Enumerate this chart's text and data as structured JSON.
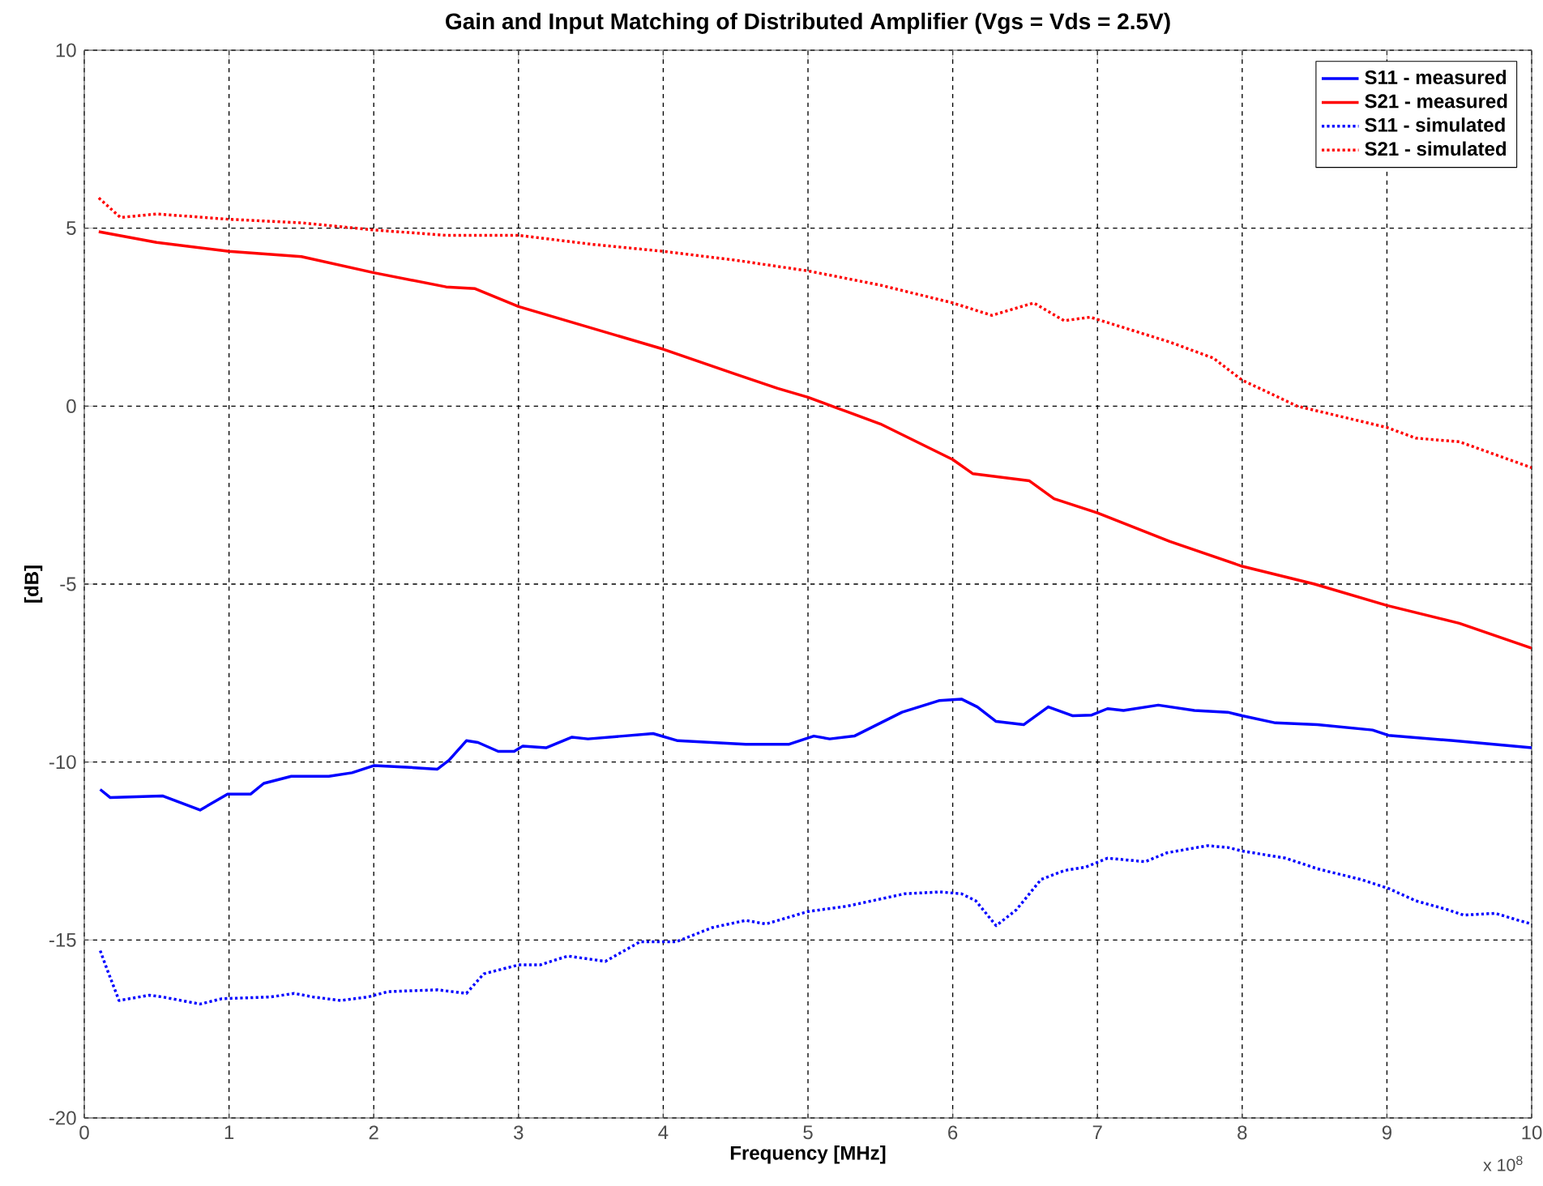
{
  "chart_data": {
    "type": "line",
    "title": "Gain and Input Matching of Distributed Amplifier (Vgs = Vds = 2.5V)",
    "xlabel": "Frequency [MHz]",
    "ylabel": "[dB]",
    "annotations": [
      "x 10$^{8}$"
    ],
    "xlim": [
      0,
      10
    ],
    "ylim": [
      -20,
      10
    ],
    "xticks": [
      0,
      1,
      2,
      3,
      4,
      5,
      6,
      7,
      8,
      9,
      10
    ],
    "yticks": [
      -20,
      -15,
      -10,
      -5,
      0,
      5,
      10
    ],
    "grid": true,
    "legend": "top right",
    "series": [
      {
        "name": "S11 - measured",
        "color": "#0000ff",
        "line_style": "solid",
        "x": [
          0.11,
          0.18,
          0.54,
          0.8,
          0.99,
          1.15,
          1.24,
          1.43,
          1.69,
          1.85,
          2.0,
          2.25,
          2.44,
          2.52,
          2.64,
          2.72,
          2.86,
          2.97,
          3.03,
          3.19,
          3.37,
          3.48,
          3.93,
          4.1,
          4.57,
          4.87,
          5.04,
          5.15,
          5.32,
          5.65,
          5.91,
          6.06,
          6.17,
          6.3,
          6.49,
          6.66,
          6.83,
          6.96,
          7.07,
          7.18,
          7.42,
          7.67,
          7.9,
          8.0,
          8.23,
          8.52,
          8.9,
          9.01,
          9.46,
          10.0
        ],
        "values": [
          -10.77,
          -11.0,
          -10.95,
          -11.35,
          -10.9,
          -10.9,
          -10.6,
          -10.4,
          -10.4,
          -10.3,
          -10.1,
          -10.15,
          -10.2,
          -9.95,
          -9.4,
          -9.45,
          -9.7,
          -9.7,
          -9.55,
          -9.6,
          -9.3,
          -9.35,
          -9.2,
          -9.4,
          -9.5,
          -9.5,
          -9.27,
          -9.35,
          -9.27,
          -8.6,
          -8.27,
          -8.23,
          -8.45,
          -8.86,
          -8.95,
          -8.45,
          -8.7,
          -8.68,
          -8.5,
          -8.55,
          -8.4,
          -8.55,
          -8.6,
          -8.7,
          -8.9,
          -8.95,
          -9.1,
          -9.25,
          -9.4,
          -9.6
        ]
      },
      {
        "name": "S21 - measured",
        "color": "#ff0000",
        "line_style": "solid",
        "x": [
          0.1,
          0.5,
          1.0,
          1.5,
          2.0,
          2.5,
          2.7,
          3.0,
          3.5,
          4.0,
          4.5,
          4.79,
          5.0,
          5.2,
          5.5,
          6.0,
          6.14,
          6.53,
          6.7,
          7.0,
          7.5,
          8.0,
          8.5,
          9.0,
          9.5,
          10.0
        ],
        "values": [
          4.9,
          4.6,
          4.35,
          4.2,
          3.75,
          3.35,
          3.3,
          2.8,
          2.2,
          1.6,
          0.9,
          0.5,
          0.25,
          -0.05,
          -0.5,
          -1.5,
          -1.9,
          -2.1,
          -2.6,
          -3.0,
          -3.8,
          -4.5,
          -5.0,
          -5.6,
          -6.1,
          -6.8
        ]
      },
      {
        "name": "S11 - simulated",
        "color": "#0000ff",
        "line_style": "dotted",
        "x": [
          0.11,
          0.16,
          0.24,
          0.45,
          0.54,
          0.8,
          0.95,
          1.29,
          1.45,
          1.58,
          1.77,
          1.96,
          2.1,
          2.44,
          2.64,
          2.76,
          3.0,
          3.15,
          3.34,
          3.6,
          3.84,
          4.09,
          4.34,
          4.57,
          4.71,
          5.0,
          5.27,
          5.67,
          5.91,
          6.06,
          6.16,
          6.3,
          6.44,
          6.61,
          6.77,
          6.92,
          7.07,
          7.33,
          7.48,
          7.76,
          7.9,
          8.0,
          8.3,
          8.52,
          8.82,
          9.01,
          9.2,
          9.42,
          9.53,
          9.75,
          9.91,
          10.0
        ],
        "values": [
          -15.3,
          -15.85,
          -16.7,
          -16.55,
          -16.6,
          -16.8,
          -16.65,
          -16.6,
          -16.5,
          -16.6,
          -16.7,
          -16.6,
          -16.45,
          -16.4,
          -16.5,
          -15.95,
          -15.7,
          -15.7,
          -15.45,
          -15.6,
          -15.05,
          -15.05,
          -14.65,
          -14.45,
          -14.55,
          -14.2,
          -14.05,
          -13.7,
          -13.65,
          -13.7,
          -13.9,
          -14.6,
          -14.15,
          -13.3,
          -13.05,
          -12.95,
          -12.7,
          -12.8,
          -12.55,
          -12.35,
          -12.4,
          -12.5,
          -12.7,
          -13.0,
          -13.3,
          -13.55,
          -13.9,
          -14.15,
          -14.3,
          -14.25,
          -14.45,
          -14.55
        ]
      },
      {
        "name": "S21 - simulated",
        "color": "#ff0000",
        "line_style": "dotted",
        "x": [
          0.1,
          0.25,
          0.5,
          1.0,
          1.5,
          2.0,
          2.5,
          3.0,
          3.5,
          4.0,
          4.5,
          5.0,
          5.5,
          6.0,
          6.27,
          6.56,
          6.77,
          6.95,
          7.5,
          7.8,
          8.0,
          8.38,
          9.0,
          9.2,
          9.5,
          10.0
        ],
        "values": [
          5.85,
          5.3,
          5.4,
          5.25,
          5.15,
          4.95,
          4.8,
          4.8,
          4.55,
          4.35,
          4.1,
          3.8,
          3.4,
          2.9,
          2.55,
          2.9,
          2.4,
          2.5,
          1.8,
          1.35,
          0.73,
          0.0,
          -0.6,
          -0.9,
          -1.0,
          -1.73
        ]
      }
    ]
  }
}
